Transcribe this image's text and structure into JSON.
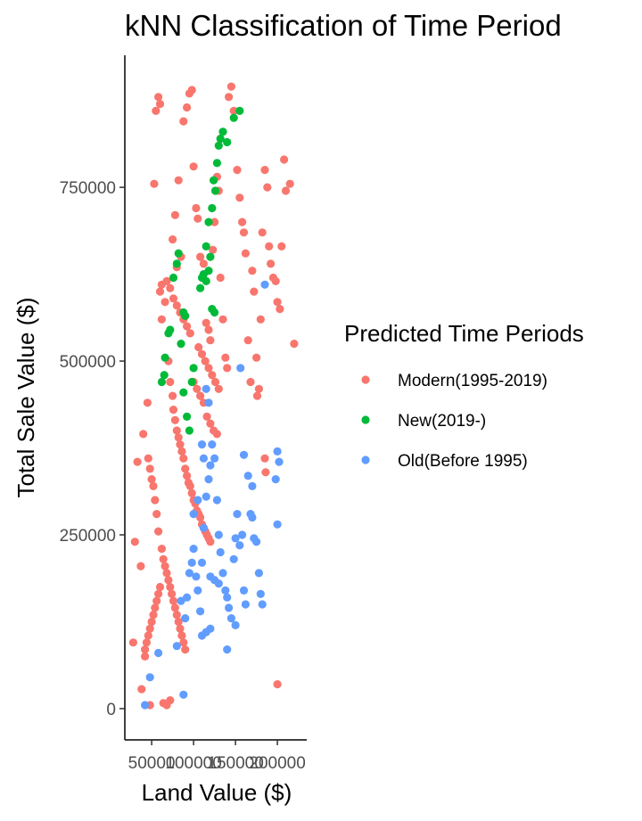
{
  "chart_data": {
    "type": "scatter",
    "title": "kNN Classification of Time Period",
    "xlabel": "Land Value ($)",
    "ylabel": "Total Sale Value ($)",
    "xlim": [
      18000,
      235000
    ],
    "ylim": [
      -45000,
      940000
    ],
    "x_ticks": [
      50000,
      100000,
      150000,
      200000
    ],
    "y_ticks": [
      0,
      250000,
      500000,
      750000
    ],
    "grid": false,
    "legend": {
      "title": "Predicted Time Periods",
      "position": "right",
      "entries": [
        "Modern(1995-2019)",
        "New(2019-)",
        "Old(Before 1995)"
      ]
    },
    "colors": {
      "Modern(1995-2019)": "#F8766D",
      "New(2019-)": "#00BA38",
      "Old(Before 1995)": "#619CFF"
    },
    "series": [
      {
        "name": "Modern(1995-2019)",
        "points": [
          [
            28000,
            95000
          ],
          [
            30000,
            240000
          ],
          [
            33000,
            355000
          ],
          [
            37000,
            205000
          ],
          [
            38000,
            28000
          ],
          [
            40000,
            395000
          ],
          [
            42000,
            75000
          ],
          [
            45000,
            440000
          ],
          [
            48000,
            5000
          ],
          [
            53000,
            755000
          ],
          [
            55000,
            860000
          ],
          [
            58000,
            880000
          ],
          [
            60000,
            870000
          ],
          [
            62000,
            610000
          ],
          [
            64000,
            8000
          ],
          [
            68000,
            5000
          ],
          [
            72000,
            12000
          ],
          [
            75000,
            675000
          ],
          [
            78000,
            710000
          ],
          [
            80000,
            635000
          ],
          [
            82000,
            760000
          ],
          [
            85000,
            650000
          ],
          [
            88000,
            845000
          ],
          [
            92000,
            865000
          ],
          [
            95000,
            885000
          ],
          [
            98000,
            890000
          ],
          [
            100000,
            780000
          ],
          [
            103000,
            720000
          ],
          [
            105000,
            705000
          ],
          [
            108000,
            650000
          ],
          [
            112000,
            640000
          ],
          [
            115000,
            555000
          ],
          [
            118000,
            545000
          ],
          [
            120000,
            530000
          ],
          [
            123000,
            660000
          ],
          [
            125000,
            700000
          ],
          [
            128000,
            765000
          ],
          [
            130000,
            745000
          ],
          [
            132000,
            620000
          ],
          [
            135000,
            560000
          ],
          [
            138000,
            505000
          ],
          [
            140000,
            490000
          ],
          [
            142000,
            880000
          ],
          [
            145000,
            895000
          ],
          [
            148000,
            860000
          ],
          [
            152000,
            775000
          ],
          [
            155000,
            735000
          ],
          [
            158000,
            700000
          ],
          [
            160000,
            685000
          ],
          [
            162000,
            655000
          ],
          [
            165000,
            530000
          ],
          [
            168000,
            470000
          ],
          [
            170000,
            630000
          ],
          [
            172000,
            600000
          ],
          [
            175000,
            505000
          ],
          [
            178000,
            460000
          ],
          [
            180000,
            560000
          ],
          [
            182000,
            685000
          ],
          [
            185000,
            775000
          ],
          [
            188000,
            750000
          ],
          [
            190000,
            665000
          ],
          [
            192000,
            640000
          ],
          [
            195000,
            620000
          ],
          [
            198000,
            615000
          ],
          [
            200000,
            585000
          ],
          [
            203000,
            575000
          ],
          [
            205000,
            665000
          ],
          [
            208000,
            790000
          ],
          [
            210000,
            745000
          ],
          [
            215000,
            755000
          ],
          [
            220000,
            525000
          ],
          [
            176000,
            450000
          ],
          [
            185000,
            360000
          ],
          [
            186000,
            340000
          ],
          [
            200000,
            35000
          ],
          [
            60000,
            600000
          ],
          [
            62000,
            560000
          ],
          [
            66000,
            585000
          ],
          [
            70000,
            500000
          ],
          [
            72000,
            470000
          ],
          [
            75000,
            450000
          ],
          [
            76000,
            430000
          ],
          [
            78000,
            415000
          ],
          [
            80000,
            400000
          ],
          [
            82000,
            390000
          ],
          [
            84000,
            380000
          ],
          [
            86000,
            370000
          ],
          [
            88000,
            360000
          ],
          [
            90000,
            345000
          ],
          [
            92000,
            335000
          ],
          [
            94000,
            325000
          ],
          [
            96000,
            320000
          ],
          [
            98000,
            310000
          ],
          [
            100000,
            300000
          ],
          [
            102000,
            295000
          ],
          [
            104000,
            285000
          ],
          [
            106000,
            280000
          ],
          [
            108000,
            275000
          ],
          [
            110000,
            265000
          ],
          [
            112000,
            260000
          ],
          [
            114000,
            255000
          ],
          [
            116000,
            250000
          ],
          [
            118000,
            245000
          ],
          [
            120000,
            240000
          ],
          [
            58000,
            255000
          ],
          [
            56000,
            280000
          ],
          [
            54000,
            300000
          ],
          [
            52000,
            320000
          ],
          [
            50000,
            330000
          ],
          [
            48000,
            345000
          ],
          [
            46000,
            360000
          ],
          [
            62000,
            230000
          ],
          [
            64000,
            215000
          ],
          [
            66000,
            205000
          ],
          [
            68000,
            195000
          ],
          [
            70000,
            185000
          ],
          [
            72000,
            175000
          ],
          [
            74000,
            165000
          ],
          [
            76000,
            155000
          ],
          [
            78000,
            145000
          ],
          [
            80000,
            135000
          ],
          [
            82000,
            125000
          ],
          [
            84000,
            115000
          ],
          [
            86000,
            105000
          ],
          [
            88000,
            95000
          ],
          [
            90000,
            85000
          ],
          [
            60000,
            175000
          ],
          [
            58000,
            165000
          ],
          [
            56000,
            155000
          ],
          [
            54000,
            145000
          ],
          [
            52000,
            135000
          ],
          [
            50000,
            125000
          ],
          [
            48000,
            115000
          ],
          [
            46000,
            105000
          ],
          [
            44000,
            95000
          ],
          [
            42000,
            85000
          ],
          [
            100000,
            470000
          ],
          [
            104000,
            460000
          ],
          [
            108000,
            450000
          ],
          [
            112000,
            440000
          ],
          [
            116000,
            420000
          ],
          [
            120000,
            410000
          ],
          [
            124000,
            400000
          ],
          [
            128000,
            395000
          ],
          [
            106000,
            520000
          ],
          [
            110000,
            510000
          ],
          [
            114000,
            500000
          ],
          [
            118000,
            490000
          ],
          [
            122000,
            480000
          ],
          [
            126000,
            470000
          ],
          [
            130000,
            460000
          ],
          [
            96000,
            540000
          ],
          [
            92000,
            550000
          ],
          [
            88000,
            560000
          ],
          [
            84000,
            570000
          ],
          [
            80000,
            580000
          ],
          [
            76000,
            590000
          ],
          [
            72000,
            605000
          ],
          [
            68000,
            615000
          ]
        ]
      },
      {
        "name": "New(2019-)",
        "points": [
          [
            62000,
            470000
          ],
          [
            65000,
            480000
          ],
          [
            66000,
            505000
          ],
          [
            70000,
            540000
          ],
          [
            72000,
            545000
          ],
          [
            76000,
            620000
          ],
          [
            80000,
            640000
          ],
          [
            82000,
            655000
          ],
          [
            88000,
            455000
          ],
          [
            92000,
            420000
          ],
          [
            95000,
            400000
          ],
          [
            98000,
            470000
          ],
          [
            100000,
            490000
          ],
          [
            85000,
            525000
          ],
          [
            88000,
            570000
          ],
          [
            90000,
            565000
          ],
          [
            108000,
            605000
          ],
          [
            110000,
            620000
          ],
          [
            112000,
            625000
          ],
          [
            115000,
            615000
          ],
          [
            118000,
            630000
          ],
          [
            120000,
            650000
          ],
          [
            122000,
            575000
          ],
          [
            125000,
            570000
          ],
          [
            115000,
            665000
          ],
          [
            118000,
            700000
          ],
          [
            122000,
            720000
          ],
          [
            124000,
            760000
          ],
          [
            126000,
            745000
          ],
          [
            128000,
            785000
          ],
          [
            130000,
            810000
          ],
          [
            132000,
            820000
          ],
          [
            135000,
            830000
          ],
          [
            140000,
            815000
          ],
          [
            148000,
            850000
          ],
          [
            155000,
            860000
          ]
        ]
      },
      {
        "name": "Old(Before 1995)",
        "points": [
          [
            42000,
            5000
          ],
          [
            48000,
            45000
          ],
          [
            58000,
            80000
          ],
          [
            80000,
            90000
          ],
          [
            88000,
            20000
          ],
          [
            92000,
            160000
          ],
          [
            95000,
            195000
          ],
          [
            98000,
            210000
          ],
          [
            100000,
            230000
          ],
          [
            103000,
            190000
          ],
          [
            105000,
            170000
          ],
          [
            108000,
            140000
          ],
          [
            110000,
            210000
          ],
          [
            112000,
            260000
          ],
          [
            115000,
            305000
          ],
          [
            118000,
            330000
          ],
          [
            120000,
            350000
          ],
          [
            122000,
            380000
          ],
          [
            125000,
            360000
          ],
          [
            128000,
            300000
          ],
          [
            130000,
            250000
          ],
          [
            132000,
            225000
          ],
          [
            135000,
            195000
          ],
          [
            138000,
            170000
          ],
          [
            140000,
            160000
          ],
          [
            142000,
            145000
          ],
          [
            145000,
            130000
          ],
          [
            148000,
            215000
          ],
          [
            150000,
            245000
          ],
          [
            152000,
            280000
          ],
          [
            155000,
            235000
          ],
          [
            158000,
            250000
          ],
          [
            160000,
            170000
          ],
          [
            162000,
            150000
          ],
          [
            140000,
            85000
          ],
          [
            150000,
            120000
          ],
          [
            168000,
            280000
          ],
          [
            170000,
            275000
          ],
          [
            172000,
            245000
          ],
          [
            175000,
            240000
          ],
          [
            178000,
            195000
          ],
          [
            180000,
            165000
          ],
          [
            182000,
            150000
          ],
          [
            156000,
            490000
          ],
          [
            185000,
            610000
          ],
          [
            200000,
            370000
          ],
          [
            202000,
            355000
          ],
          [
            198000,
            330000
          ],
          [
            200000,
            265000
          ],
          [
            160000,
            365000
          ],
          [
            165000,
            335000
          ],
          [
            170000,
            320000
          ],
          [
            115000,
            460000
          ],
          [
            118000,
            440000
          ],
          [
            110000,
            380000
          ],
          [
            112000,
            360000
          ],
          [
            105000,
            300000
          ],
          [
            100000,
            280000
          ],
          [
            120000,
            190000
          ],
          [
            125000,
            185000
          ],
          [
            130000,
            180000
          ],
          [
            110000,
            105000
          ],
          [
            115000,
            110000
          ],
          [
            120000,
            115000
          ],
          [
            85000,
            155000
          ],
          [
            90000,
            130000
          ]
        ]
      }
    ]
  }
}
